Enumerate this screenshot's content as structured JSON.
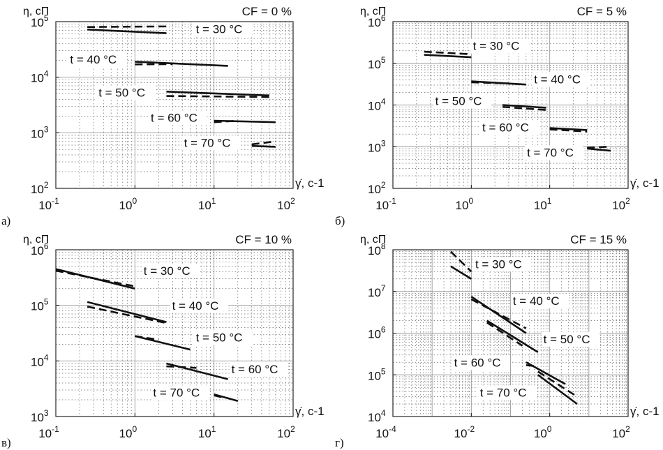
{
  "figure": {
    "y_axis_label": "η, сП",
    "x_axis_label": "γ̇, с-1"
  },
  "chart_data": [
    {
      "type": "line",
      "panel_label": "а)",
      "title": "CF = 0 %",
      "xlabel": "γ̇, с-1",
      "ylabel": "η, сП",
      "x_scale": "log",
      "y_scale": "log",
      "xlim": [
        0.1,
        100
      ],
      "ylim": [
        100,
        100000
      ],
      "x_ticks": [
        {
          "b": "10",
          "e": "-1"
        },
        {
          "b": "10",
          "e": "0"
        },
        {
          "b": "10",
          "e": "1"
        },
        {
          "b": "10",
          "e": "2"
        }
      ],
      "y_ticks": [
        {
          "b": "10",
          "e": "2"
        },
        {
          "b": "10",
          "e": "3"
        },
        {
          "b": "10",
          "e": "4"
        },
        {
          "b": "10",
          "e": "5"
        }
      ],
      "grid": true,
      "series": [
        {
          "name": "t = 30 °C",
          "solid": [
            [
              0.25,
              72000
            ],
            [
              2.5,
              62000
            ]
          ],
          "dashed": [
            [
              0.25,
              80000
            ],
            [
              2.5,
              82000
            ]
          ]
        },
        {
          "name": "t = 40 °C",
          "solid": [
            [
              1.0,
              19000
            ],
            [
              15.0,
              16000
            ]
          ],
          "dashed": [
            [
              1.0,
              17000
            ],
            [
              3.0,
              17200
            ]
          ]
        },
        {
          "name": "t = 50 °C",
          "solid": [
            [
              2.5,
              5500
            ],
            [
              50.0,
              4700
            ]
          ],
          "dashed": [
            [
              2.5,
              4600
            ],
            [
              50.0,
              4400
            ]
          ]
        },
        {
          "name": "t = 60 °C",
          "solid": [
            [
              10.0,
              1650
            ],
            [
              60.0,
              1550
            ]
          ],
          "dashed": [
            [
              10.0,
              1550
            ],
            [
              20.0,
              1650
            ]
          ]
        },
        {
          "name": "t = 70 °C",
          "solid": [
            [
              30.0,
              580
            ],
            [
              60.0,
              560
            ]
          ],
          "dashed": [
            [
              30.0,
              620
            ],
            [
              60.0,
              700
            ]
          ]
        }
      ]
    },
    {
      "type": "line",
      "panel_label": "б)",
      "title": "CF = 5 %",
      "xlabel": "γ̇, с-1",
      "ylabel": "η, сП",
      "x_scale": "log",
      "y_scale": "log",
      "xlim": [
        0.1,
        100
      ],
      "ylim": [
        100,
        1000000
      ],
      "x_ticks": [
        {
          "b": "10",
          "e": "-1"
        },
        {
          "b": "10",
          "e": "0"
        },
        {
          "b": "10",
          "e": "1"
        },
        {
          "b": "10",
          "e": "2"
        }
      ],
      "y_ticks": [
        {
          "b": "10",
          "e": "2"
        },
        {
          "b": "10",
          "e": "3"
        },
        {
          "b": "10",
          "e": "4"
        },
        {
          "b": "10",
          "e": "5"
        },
        {
          "b": "10",
          "e": "6"
        }
      ],
      "grid": true,
      "series": [
        {
          "name": "t = 30 °C",
          "solid": [
            [
              0.25,
              160000
            ],
            [
              1.0,
              140000
            ]
          ],
          "dashed": [
            [
              0.25,
              190000
            ],
            [
              1.0,
              165000
            ]
          ]
        },
        {
          "name": "t = 40 °C",
          "solid": [
            [
              1.0,
              37000
            ],
            [
              5.0,
              31000
            ]
          ],
          "dashed": [
            [
              1.0,
              35000
            ],
            [
              3.0,
              33000
            ]
          ]
        },
        {
          "name": "t = 50 °C",
          "solid": [
            [
              2.5,
              10000
            ],
            [
              9.0,
              8600
            ]
          ],
          "dashed": [
            [
              2.5,
              9000
            ],
            [
              9.0,
              7600
            ]
          ]
        },
        {
          "name": "t = 60 °C",
          "solid": [
            [
              10.0,
              2800
            ],
            [
              30.0,
              2500
            ]
          ],
          "dashed": [
            [
              10.0,
              2600
            ],
            [
              30.0,
              2300
            ]
          ]
        },
        {
          "name": "t = 70 °C",
          "solid": [
            [
              30.0,
              900
            ],
            [
              60.0,
              800
            ]
          ],
          "dashed": [
            [
              30.0,
              950
            ],
            [
              60.0,
              1000
            ]
          ]
        }
      ]
    },
    {
      "type": "line",
      "panel_label": "в)",
      "title": "CF = 10 %",
      "xlabel": "γ̇, с-1",
      "ylabel": "η, сП",
      "x_scale": "log",
      "y_scale": "log",
      "xlim": [
        0.1,
        100
      ],
      "ylim": [
        1000,
        1000000
      ],
      "x_ticks": [
        {
          "b": "10",
          "e": "-1"
        },
        {
          "b": "10",
          "e": "0"
        },
        {
          "b": "10",
          "e": "1"
        },
        {
          "b": "10",
          "e": "2"
        }
      ],
      "y_ticks": [
        {
          "b": "10",
          "e": "3"
        },
        {
          "b": "10",
          "e": "4"
        },
        {
          "b": "10",
          "e": "5"
        },
        {
          "b": "10",
          "e": "6"
        }
      ],
      "grid": true,
      "series": [
        {
          "name": "t = 30 °C",
          "solid": [
            [
              0.1,
              450000
            ],
            [
              1.0,
              200000
            ]
          ],
          "dashed": [
            [
              0.1,
              420000
            ],
            [
              1.0,
              220000
            ]
          ]
        },
        {
          "name": "t = 40 °C",
          "solid": [
            [
              0.25,
              115000
            ],
            [
              2.5,
              50000
            ]
          ],
          "dashed": [
            [
              0.25,
              95000
            ],
            [
              2.5,
              48000
            ]
          ]
        },
        {
          "name": "t = 50 °C",
          "solid": [
            [
              1.0,
              28000
            ],
            [
              5.0,
              16000
            ]
          ],
          "dashed": [
            [
              1.0,
              28000
            ],
            [
              2.0,
              24000
            ]
          ]
        },
        {
          "name": "t = 60 °C",
          "solid": [
            [
              2.5,
              9000
            ],
            [
              15.0,
              4700
            ]
          ],
          "dashed": [
            [
              2.5,
              8000
            ],
            [
              6.0,
              7500
            ]
          ]
        },
        {
          "name": "t = 70 °C",
          "solid": [
            [
              10.0,
              2500
            ],
            [
              20.0,
              1900
            ]
          ],
          "dashed": [
            [
              10.0,
              2400
            ],
            [
              13.0,
              2200
            ]
          ]
        }
      ]
    },
    {
      "type": "line",
      "panel_label": "г)",
      "title": "CF = 15 %",
      "xlabel": "γ̇, с-1",
      "ylabel": "η, сП",
      "x_scale": "log",
      "y_scale": "log",
      "xlim": [
        0.0001,
        100
      ],
      "ylim": [
        10000,
        100000000
      ],
      "x_ticks": [
        {
          "b": "10",
          "e": "-4"
        },
        {
          "b": "10",
          "e": "-2"
        },
        {
          "b": "10",
          "e": "0"
        },
        {
          "b": "10",
          "e": "2"
        }
      ],
      "y_ticks": [
        {
          "b": "10",
          "e": "4"
        },
        {
          "b": "10",
          "e": "5"
        },
        {
          "b": "10",
          "e": "6"
        },
        {
          "b": "10",
          "e": "7"
        },
        {
          "b": "10",
          "e": "8"
        }
      ],
      "grid": true,
      "series": [
        {
          "name": "t = 30 °C",
          "solid": [
            [
              0.003,
              40000000
            ],
            [
              0.01,
              20000000
            ]
          ],
          "dashed": [
            [
              0.003,
              90000000
            ],
            [
              0.01,
              30000000
            ]
          ]
        },
        {
          "name": "t = 40 °C",
          "solid": [
            [
              0.01,
              7500000
            ],
            [
              0.25,
              1000000
            ]
          ],
          "dashed": [
            [
              0.01,
              6500000
            ],
            [
              0.25,
              1300000
            ]
          ]
        },
        {
          "name": "t = 50 °C",
          "solid": [
            [
              0.025,
              2000000
            ],
            [
              0.5,
              350000
            ]
          ],
          "dashed": [
            [
              0.025,
              1800000
            ],
            [
              0.2,
              500000
            ]
          ]
        },
        {
          "name": "t = 60 °C",
          "solid": [
            [
              0.25,
              200000
            ],
            [
              2.5,
              60000
            ]
          ],
          "dashed": [
            [
              0.25,
              170000
            ],
            [
              0.5,
              160000
            ]
          ]
        },
        {
          "name": "t = 70 °C",
          "solid": [
            [
              0.5,
              100000
            ],
            [
              5.0,
              20000
            ]
          ],
          "dashed": [
            [
              0.5,
              120000
            ],
            [
              5.0,
              30000
            ]
          ]
        }
      ]
    }
  ]
}
